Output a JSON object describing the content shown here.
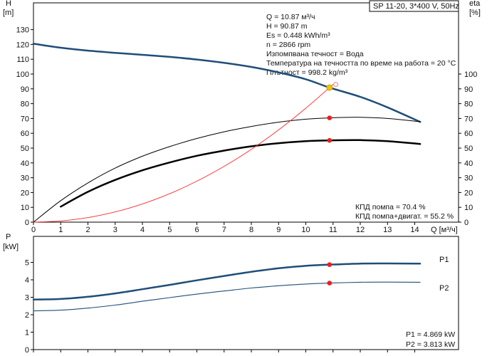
{
  "chart_data": [
    {
      "type": "line",
      "title": "SP 11-20, 3*400 V, 50Hz",
      "left_axis": {
        "label_top": "H",
        "label_unit": "[m]",
        "ylim": [
          0,
          140
        ],
        "ticks": [
          0,
          10,
          20,
          30,
          40,
          50,
          60,
          70,
          80,
          90,
          100,
          110,
          120,
          130
        ]
      },
      "right_axis": {
        "label_top": "eta",
        "label_unit": "[%]",
        "ylim": [
          0,
          140
        ],
        "ticks": [
          0,
          10,
          20,
          30,
          40,
          50,
          60,
          70,
          80,
          90,
          100
        ]
      },
      "x_axis": {
        "label": "Q [м³/ч]",
        "xlim": [
          0,
          15
        ],
        "ticks": [
          0,
          1,
          2,
          3,
          4,
          5,
          6,
          7,
          8,
          9,
          10,
          11,
          12,
          13,
          14
        ]
      },
      "grid": false,
      "series": [
        {
          "key": "H",
          "color": "#1f4e79",
          "stroke": 2.5,
          "points": [
            [
              0,
              120.5
            ],
            [
              1,
              117.8
            ],
            [
              2,
              115.8
            ],
            [
              3,
              114.3
            ],
            [
              4,
              113.0
            ],
            [
              5,
              111.6
            ],
            [
              6,
              109.8
            ],
            [
              7,
              107.6
            ],
            [
              8,
              104.8
            ],
            [
              9,
              101.1
            ],
            [
              10,
              96.5
            ],
            [
              10.87,
              90.87
            ],
            [
              12,
              84.6
            ],
            [
              13,
              77.5
            ],
            [
              14.2,
              67.7
            ]
          ]
        },
        {
          "key": "eta_pump",
          "color": "#000000",
          "stroke": 1.0,
          "points": [
            [
              0,
              0
            ],
            [
              1,
              14.5
            ],
            [
              2,
              26.5
            ],
            [
              3,
              36.5
            ],
            [
              4,
              44.5
            ],
            [
              5,
              51.0
            ],
            [
              6,
              56.5
            ],
            [
              7,
              61.0
            ],
            [
              8,
              64.6
            ],
            [
              9,
              67.5
            ],
            [
              10,
              69.5
            ],
            [
              10.87,
              70.4
            ],
            [
              12,
              70.8
            ],
            [
              13,
              70.0
            ],
            [
              14.2,
              67.8
            ]
          ]
        },
        {
          "key": "eta_total",
          "color": "#000000",
          "stroke": 2.5,
          "points": [
            [
              1,
              10.5
            ],
            [
              2,
              20.5
            ],
            [
              3,
              28.5
            ],
            [
              4,
              35.0
            ],
            [
              5,
              40.3
            ],
            [
              6,
              44.8
            ],
            [
              7,
              48.3
            ],
            [
              8,
              51.2
            ],
            [
              9,
              53.3
            ],
            [
              10,
              54.7
            ],
            [
              10.87,
              55.2
            ],
            [
              12,
              55.4
            ],
            [
              13,
              54.7
            ],
            [
              14.2,
              52.8
            ]
          ]
        },
        {
          "key": "system_curve",
          "color": "#ff2a2a",
          "stroke": 0.9,
          "points": [
            [
              0,
              0
            ],
            [
              1,
              0.8
            ],
            [
              2,
              3.1
            ],
            [
              3,
              6.9
            ],
            [
              4,
              12.3
            ],
            [
              5,
              19.2
            ],
            [
              6,
              27.7
            ],
            [
              7,
              37.7
            ],
            [
              8,
              49.2
            ],
            [
              9,
              62.3
            ],
            [
              10,
              76.9
            ],
            [
              10.87,
              90.87
            ],
            [
              11.0,
              93.0
            ]
          ]
        }
      ],
      "markers": [
        {
          "x": 10.87,
          "y": 90.87,
          "color": "#f2c200"
        },
        {
          "x": 10.87,
          "y": 70.4,
          "color": "#ee1c1c"
        },
        {
          "x": 10.87,
          "y": 55.2,
          "color": "#ee1c1c"
        }
      ],
      "open_marker": {
        "x": 11.1,
        "y": 93.0
      },
      "info_lines": [
        "Q = 10.87 м³/ч",
        "H = 90.87 m",
        "Es = 0.448 kWh/m³",
        "n = 2866 rpm",
        "Изпомпвана течност = Вода",
        "Температура на течността по време на работа = 20 °C",
        "Плътност = 998.2 kg/m³"
      ],
      "efficiency_notes": [
        "КПД помпа = 70.4 %",
        "КПД помпа+двигат. = 55.2 %"
      ]
    },
    {
      "type": "line",
      "y_axis": {
        "label_top": "P",
        "label_unit": "[kW]",
        "ylim": [
          0,
          6
        ],
        "ticks": [
          0,
          1,
          2,
          3,
          4,
          5
        ]
      },
      "grid": false,
      "series": [
        {
          "name": "P1",
          "color": "#1f4e79",
          "stroke": 2.5,
          "points": [
            [
              0,
              2.87
            ],
            [
              1,
              2.9
            ],
            [
              2,
              3.03
            ],
            [
              3,
              3.22
            ],
            [
              4,
              3.46
            ],
            [
              5,
              3.71
            ],
            [
              6,
              3.97
            ],
            [
              7,
              4.22
            ],
            [
              8,
              4.46
            ],
            [
              9,
              4.66
            ],
            [
              10,
              4.8
            ],
            [
              10.87,
              4.869
            ],
            [
              12,
              4.93
            ],
            [
              13,
              4.94
            ],
            [
              14.2,
              4.93
            ]
          ]
        },
        {
          "name": "P2",
          "color": "#1f4e79",
          "stroke": 1.1,
          "points": [
            [
              0,
              2.22
            ],
            [
              1,
              2.26
            ],
            [
              2,
              2.38
            ],
            [
              3,
              2.55
            ],
            [
              4,
              2.77
            ],
            [
              5,
              2.98
            ],
            [
              6,
              3.18
            ],
            [
              7,
              3.36
            ],
            [
              8,
              3.53
            ],
            [
              9,
              3.66
            ],
            [
              10,
              3.76
            ],
            [
              10.87,
              3.813
            ],
            [
              12,
              3.86
            ],
            [
              13,
              3.87
            ],
            [
              14.2,
              3.86
            ]
          ]
        }
      ],
      "markers": [
        {
          "x": 10.87,
          "y": 4.869,
          "color": "#ee1c1c"
        },
        {
          "x": 10.87,
          "y": 3.813,
          "color": "#ee1c1c"
        }
      ],
      "value_notes": [
        "P1 = 4.869 kW",
        "P2 = 3.813 kW"
      ]
    }
  ]
}
